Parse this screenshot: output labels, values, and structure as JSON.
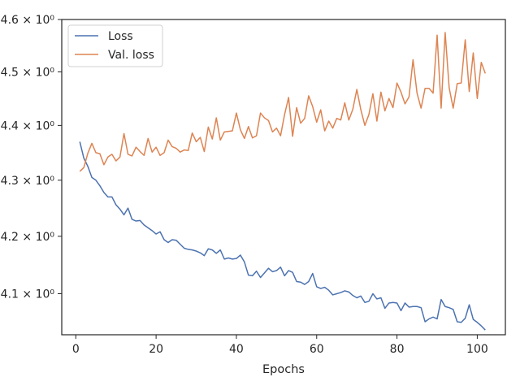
{
  "chart_data": {
    "type": "line",
    "title": "",
    "xlabel": "Epochs",
    "ylabel": "",
    "y_scale": "log",
    "xlim": [
      -3.5,
      107
    ],
    "ylim": [
      4.03,
      4.6
    ],
    "x_ticks": [
      0,
      20,
      40,
      60,
      80,
      100
    ],
    "x_tick_labels": [
      "0",
      "20",
      "40",
      "60",
      "80",
      "100"
    ],
    "y_ticks": [
      4.1,
      4.2,
      4.3,
      4.4,
      4.5,
      4.6
    ],
    "y_tick_labels": [
      "4.1 × 10⁰",
      "4.2 × 10⁰",
      "4.3 × 10⁰",
      "4.4 × 10⁰",
      "4.5 × 10⁰",
      "4.6 × 10⁰"
    ],
    "grid": false,
    "legend_position": "top-left",
    "series": [
      {
        "name": "Loss",
        "color": "#4c72b0",
        "values": [
          4.37,
          4.34,
          4.325,
          4.305,
          4.3,
          4.29,
          4.278,
          4.27,
          4.27,
          4.256,
          4.248,
          4.238,
          4.25,
          4.23,
          4.227,
          4.228,
          4.22,
          4.215,
          4.21,
          4.204,
          4.208,
          4.194,
          4.189,
          4.194,
          4.193,
          4.186,
          4.179,
          4.177,
          4.176,
          4.174,
          4.171,
          4.166,
          4.178,
          4.176,
          4.17,
          4.176,
          4.16,
          4.162,
          4.16,
          4.161,
          4.167,
          4.155,
          4.132,
          4.131,
          4.139,
          4.128,
          4.136,
          4.144,
          4.138,
          4.14,
          4.146,
          4.131,
          4.14,
          4.137,
          4.121,
          4.12,
          4.116,
          4.121,
          4.135,
          4.112,
          4.109,
          4.111,
          4.106,
          4.098,
          4.1,
          4.102,
          4.105,
          4.103,
          4.097,
          4.093,
          4.096,
          4.085,
          4.087,
          4.1,
          4.091,
          4.093,
          4.075,
          4.084,
          4.085,
          4.084,
          4.071,
          4.084,
          4.077,
          4.078,
          4.078,
          4.076,
          4.052,
          4.057,
          4.06,
          4.057,
          4.09,
          4.078,
          4.076,
          4.073,
          4.052,
          4.051,
          4.058,
          4.081,
          4.056,
          4.051,
          4.045,
          4.038
        ]
      },
      {
        "name": "Val. loss",
        "color": "#dd8452",
        "values": [
          4.316,
          4.323,
          4.349,
          4.367,
          4.35,
          4.348,
          4.328,
          4.342,
          4.347,
          4.335,
          4.342,
          4.385,
          4.347,
          4.344,
          4.36,
          4.352,
          4.345,
          4.376,
          4.351,
          4.36,
          4.345,
          4.35,
          4.373,
          4.361,
          4.358,
          4.351,
          4.355,
          4.354,
          4.386,
          4.37,
          4.378,
          4.352,
          4.397,
          4.375,
          4.414,
          4.373,
          4.388,
          4.389,
          4.39,
          4.423,
          4.392,
          4.376,
          4.398,
          4.377,
          4.381,
          4.423,
          4.414,
          4.409,
          4.388,
          4.395,
          4.381,
          4.42,
          4.452,
          4.38,
          4.433,
          4.404,
          4.413,
          4.455,
          4.435,
          4.406,
          4.429,
          4.39,
          4.408,
          4.395,
          4.413,
          4.41,
          4.442,
          4.41,
          4.43,
          4.467,
          4.429,
          4.4,
          4.42,
          4.459,
          4.408,
          4.462,
          4.427,
          4.45,
          4.433,
          4.479,
          4.462,
          4.44,
          4.453,
          4.523,
          4.46,
          4.432,
          4.469,
          4.469,
          4.46,
          4.57,
          4.432,
          4.575,
          4.47,
          4.432,
          4.478,
          4.479,
          4.561,
          4.463,
          4.536,
          4.45,
          4.518,
          4.497
        ]
      }
    ]
  }
}
